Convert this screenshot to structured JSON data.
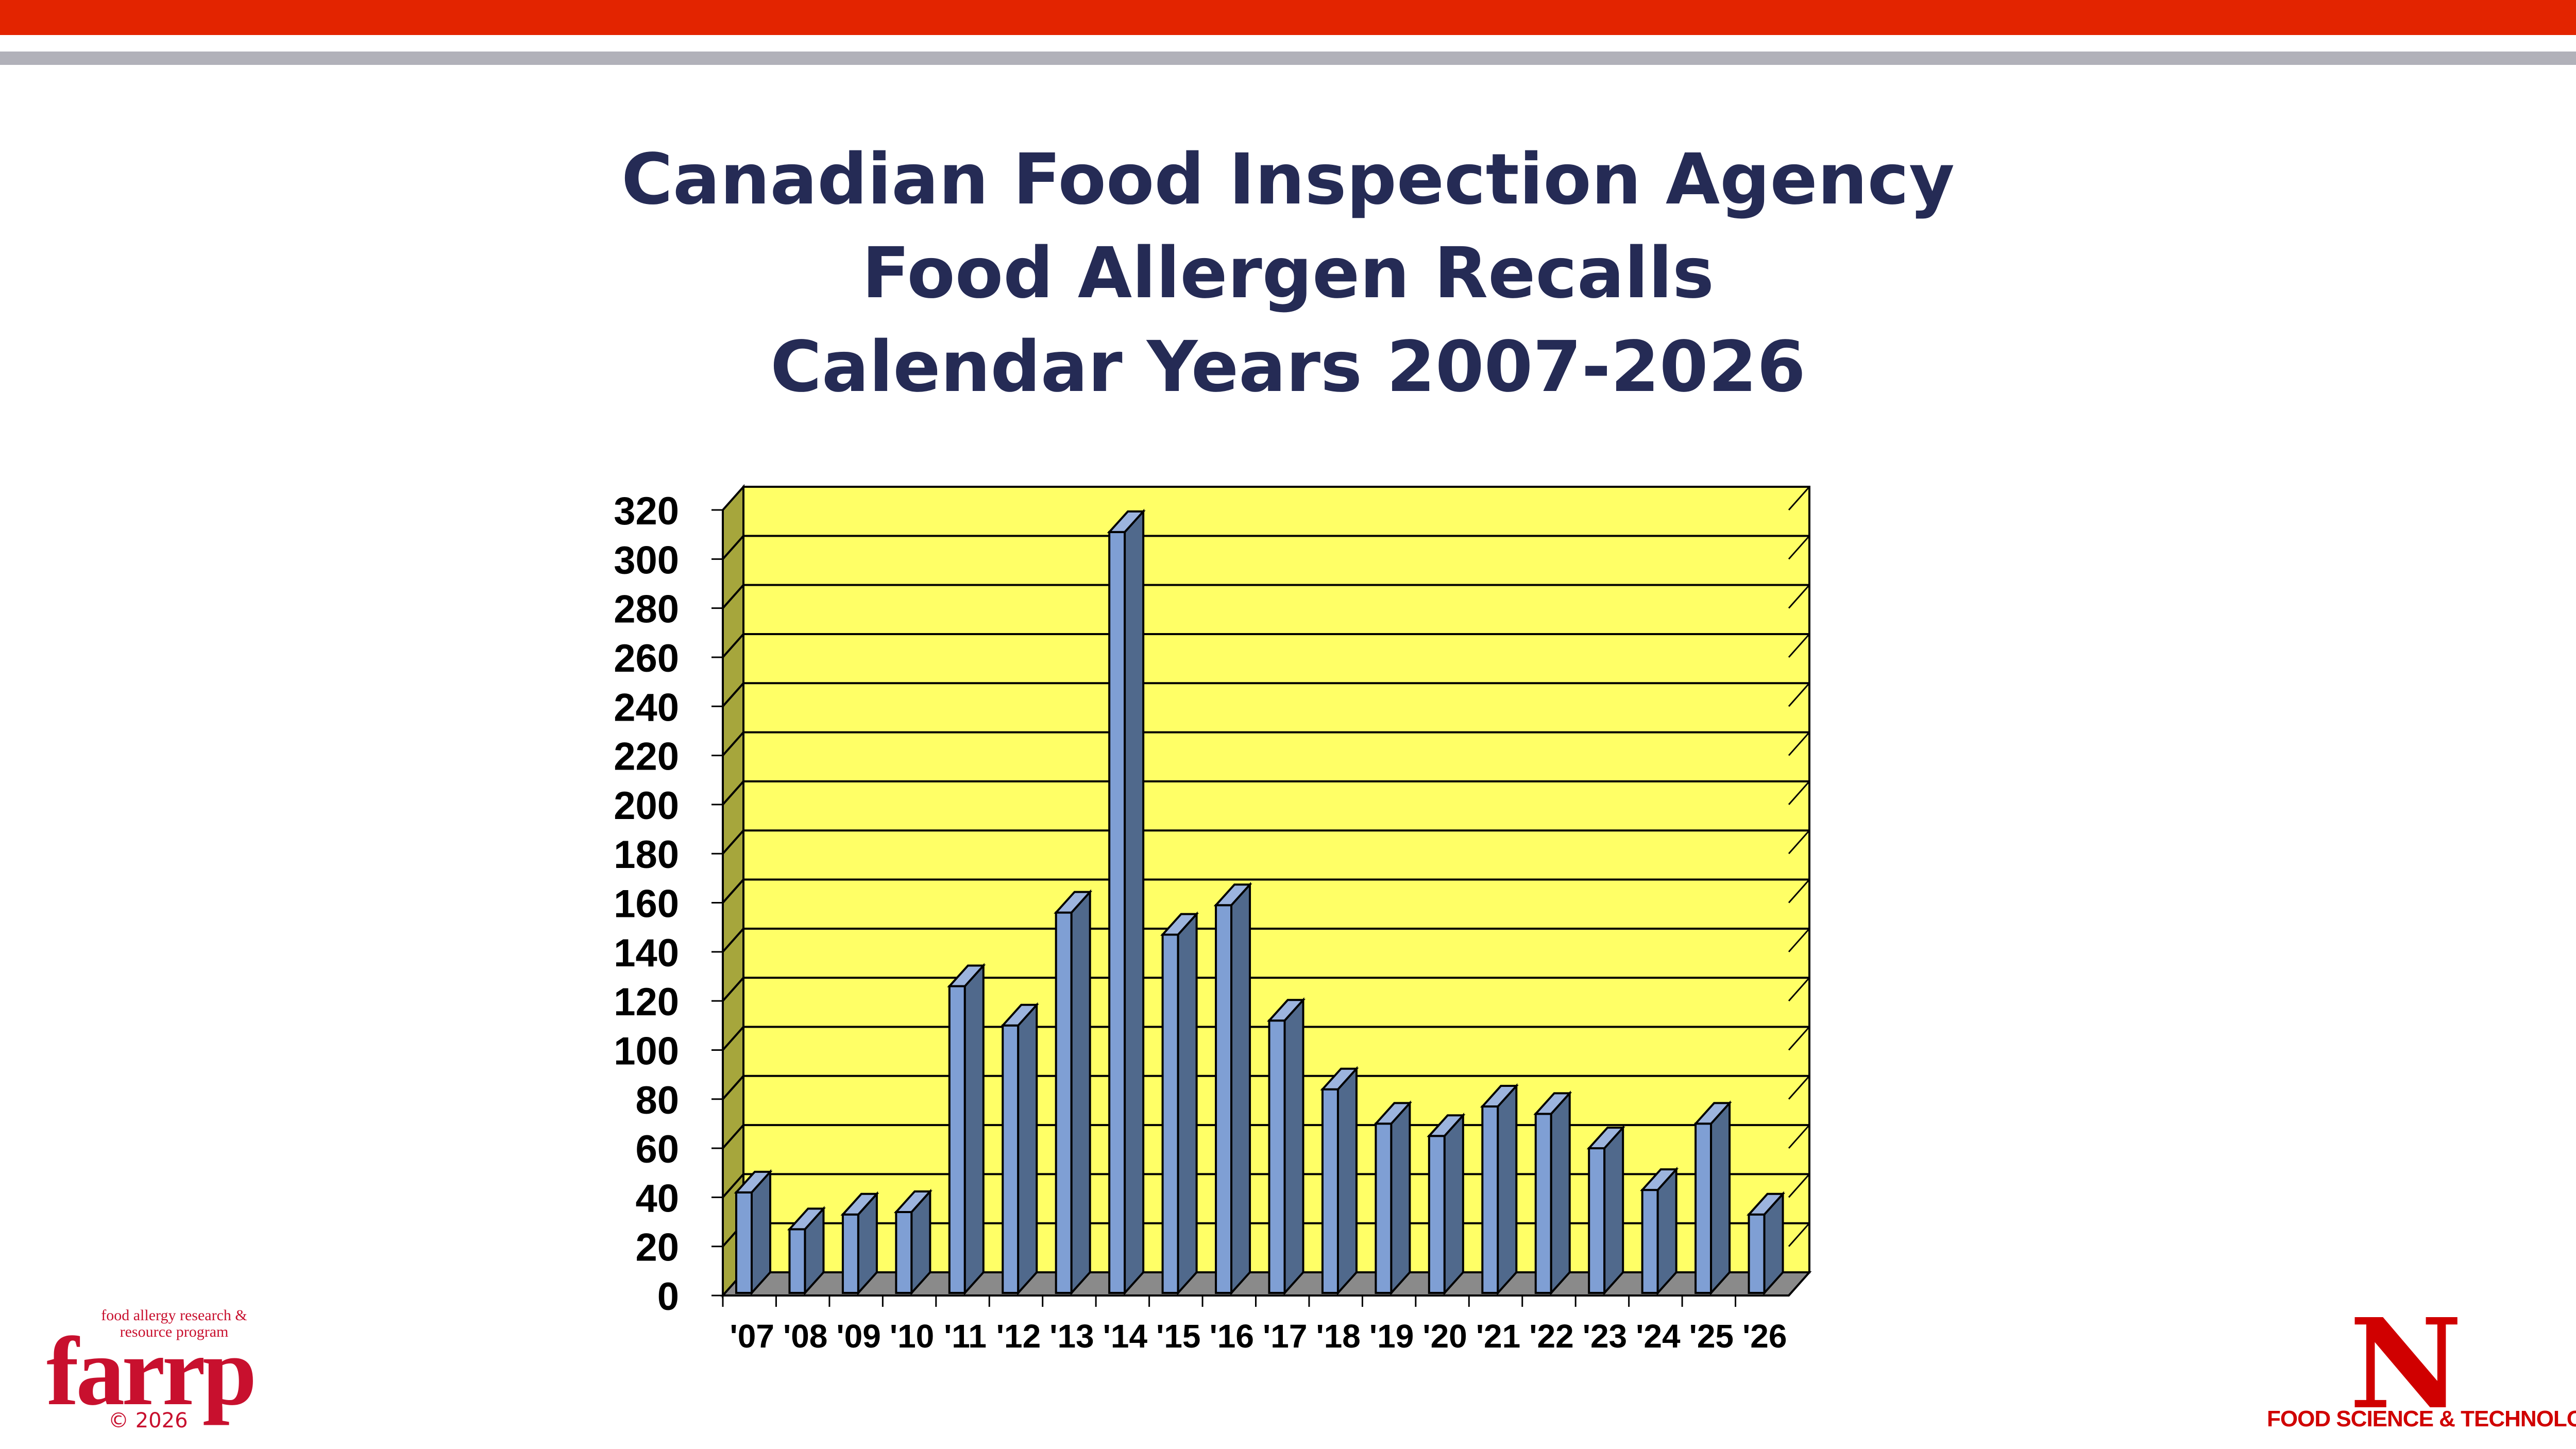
{
  "title_lines": [
    "Canadian Food Inspection Agency",
    "Food Allergen Recalls",
    "Calendar Years 2007-2026"
  ],
  "chart_data": {
    "type": "bar",
    "title": "Canadian Food Inspection Agency Food Allergen Recalls Calendar Years 2007-2026",
    "xlabel": "",
    "ylabel": "",
    "categories": [
      "'07",
      "'08",
      "'09",
      "'10",
      "'11",
      "'12",
      "'13",
      "'14",
      "'15",
      "'16",
      "'17",
      "'18",
      "'19",
      "'20",
      "'21",
      "'22",
      "'23",
      "'24",
      "'25",
      "'26"
    ],
    "values": [
      42,
      27,
      33,
      34,
      126,
      110,
      156,
      311,
      147,
      159,
      112,
      84,
      70,
      65,
      77,
      74,
      60,
      43,
      70,
      33
    ],
    "ylim": [
      0,
      320
    ],
    "yticks": [
      "0",
      "20",
      "40",
      "60",
      "80",
      "100",
      "120",
      "140",
      "160",
      "180",
      "200",
      "220",
      "240",
      "260",
      "280",
      "300",
      "320"
    ],
    "grid": true,
    "legend": "none",
    "colors": {
      "plot_background": "#ffff66",
      "side_wall": "#a6a63c",
      "floor": "#8a8a8a",
      "bar_front": "#7f9fd4",
      "bar_side": "#50698c",
      "bar_top": "#9cb4de"
    }
  },
  "logos": {
    "farrp_tagline": "food allergy research & resource program",
    "farrp_name": "farrp",
    "copyright": "© 2026",
    "unl_mark": "N",
    "department": "FOOD SCIENCE & TECHNOLOGY"
  }
}
